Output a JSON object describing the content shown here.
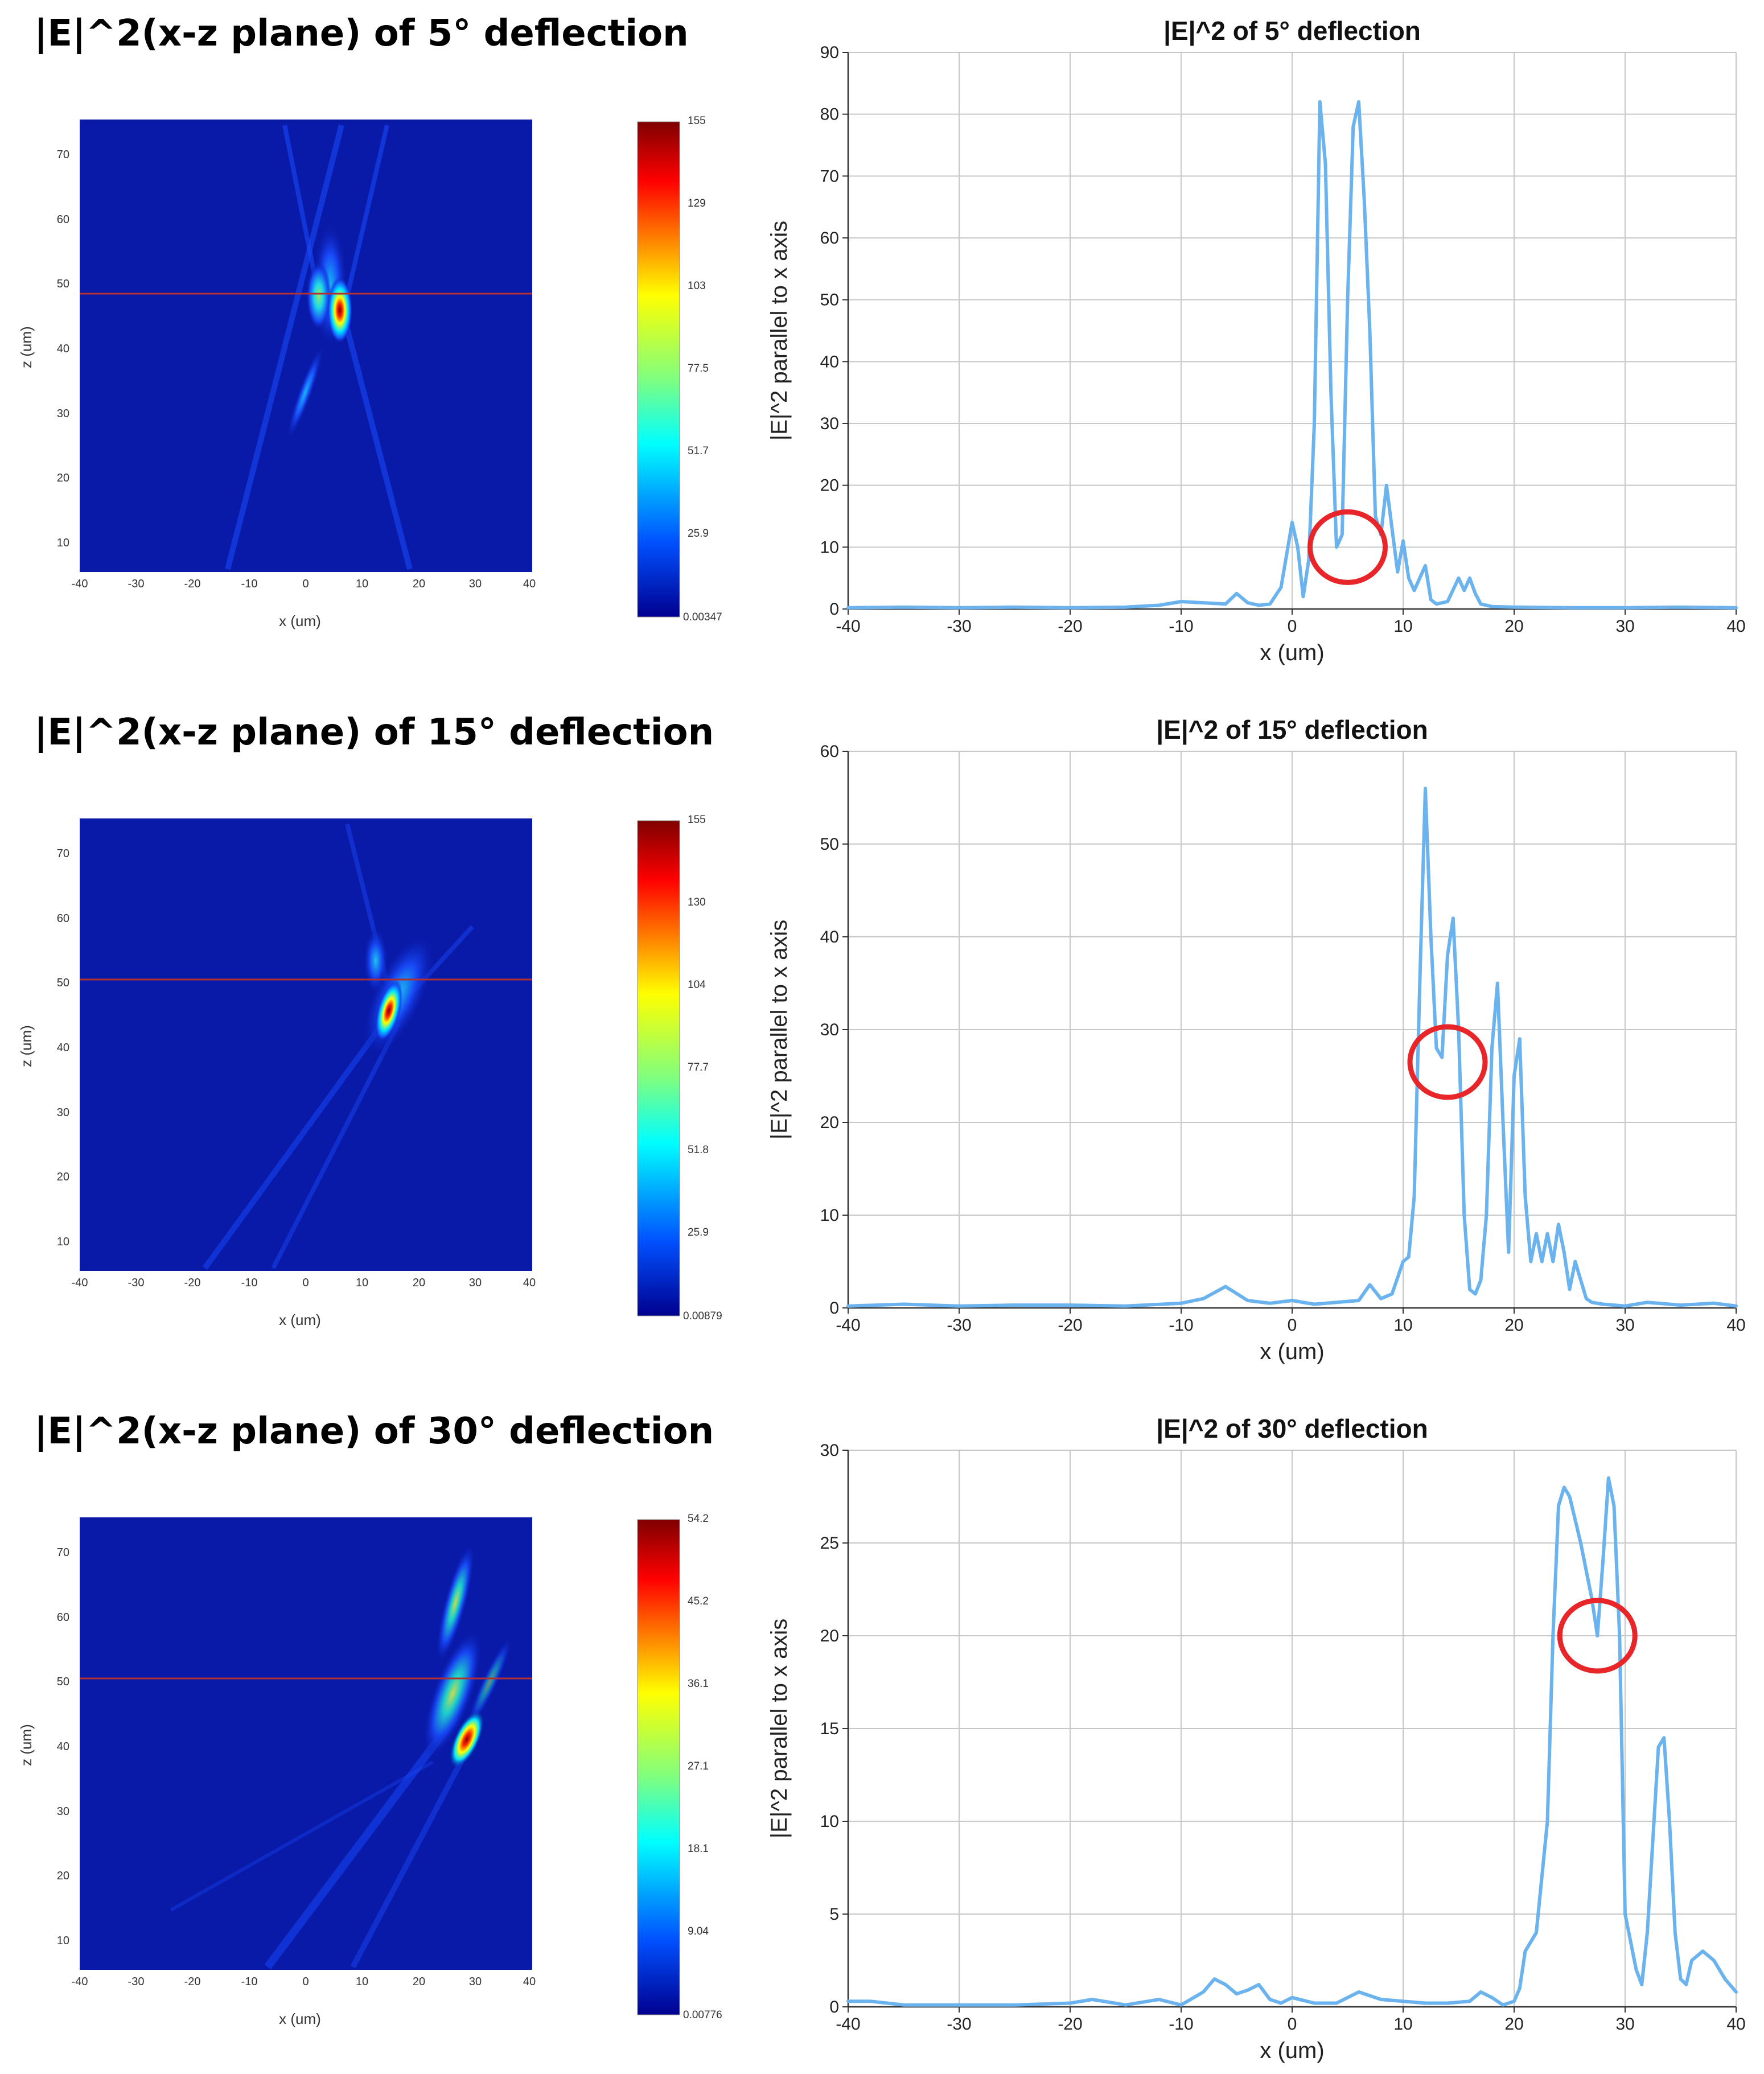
{
  "heatmaps": [
    {
      "title": "|E|^2(x-z plane) of 5° deflection",
      "xlabel": "x (um)",
      "ylabel": "z (um)",
      "xticks": [
        "-40",
        "-30",
        "-20",
        "-10",
        "0",
        "10",
        "20",
        "30",
        "40"
      ],
      "zticks": [
        "70",
        "60",
        "50",
        "40",
        "30",
        "20",
        "10"
      ],
      "colorbar_ticks": [
        "155",
        "129",
        "103",
        "77.5",
        "51.7",
        "25.9",
        "0.00347"
      ]
    },
    {
      "title": "|E|^2(x-z plane) of 15° deflection",
      "xlabel": "x (um)",
      "ylabel": "z (um)",
      "xticks": [
        "-40",
        "-30",
        "-20",
        "-10",
        "0",
        "10",
        "20",
        "30",
        "40"
      ],
      "zticks": [
        "70",
        "60",
        "50",
        "40",
        "30",
        "20",
        "10"
      ],
      "colorbar_ticks": [
        "155",
        "130",
        "104",
        "77.7",
        "51.8",
        "25.9",
        "0.00879"
      ]
    },
    {
      "title": "|E|^2(x-z plane) of 30° deflection",
      "xlabel": "x (um)",
      "ylabel": "z (um)",
      "xticks": [
        "-40",
        "-30",
        "-20",
        "-10",
        "0",
        "10",
        "20",
        "30",
        "40"
      ],
      "zticks": [
        "70",
        "60",
        "50",
        "40",
        "30",
        "20",
        "10"
      ],
      "colorbar_ticks": [
        "54.2",
        "45.2",
        "36.1",
        "27.1",
        "18.1",
        "9.04",
        "0.00776"
      ]
    }
  ],
  "chart_data": [
    {
      "type": "heatmap",
      "title": "|E|^2(x-z plane) of 5° deflection",
      "xlabel": "x (um)",
      "ylabel": "z (um)",
      "xlim": [
        -40,
        40
      ],
      "zlim": [
        5,
        75
      ],
      "colorbar_range": [
        0.00347,
        155
      ],
      "hotspots": [
        {
          "x": 6.5,
          "z": 46,
          "value": 155
        },
        {
          "x": 3,
          "z": 47,
          "value": 90
        }
      ],
      "marker_line_z": 48
    },
    {
      "type": "line",
      "title": "|E|^2 of 5° deflection",
      "xlabel": "x (um)",
      "ylabel": "|E|^2 parallel to x axis",
      "xlim": [
        -40,
        40
      ],
      "ylim": [
        0,
        90
      ],
      "xticks": [
        -40,
        -30,
        -20,
        -10,
        0,
        10,
        20,
        30,
        40
      ],
      "yticks": [
        0,
        10,
        20,
        30,
        40,
        50,
        60,
        70,
        80,
        90
      ],
      "grid": true,
      "series": [
        {
          "color": "#6ab3ee",
          "x": [
            -40,
            -35,
            -30,
            -25,
            -20,
            -15,
            -12,
            -10,
            -8,
            -6,
            -5,
            -4,
            -3,
            -2,
            -1,
            0,
            0.5,
            1,
            1.5,
            2,
            2.5,
            3,
            3.5,
            4,
            4.5,
            5,
            5.5,
            6,
            6.5,
            7,
            7.5,
            8,
            8.5,
            9,
            9.5,
            10,
            10.5,
            11,
            12,
            12.5,
            13,
            14,
            15,
            15.5,
            16,
            16.5,
            17,
            18,
            20,
            25,
            30,
            35,
            40
          ],
          "y": [
            0.2,
            0.3,
            0.2,
            0.3,
            0.2,
            0.3,
            0.6,
            1.2,
            1.0,
            0.8,
            2.5,
            1.0,
            0.6,
            0.8,
            3.5,
            14,
            10,
            2,
            8,
            30,
            82,
            72,
            35,
            10,
            12,
            50,
            78,
            82,
            66,
            45,
            15,
            12,
            20,
            13,
            6,
            11,
            5,
            3,
            7,
            1.5,
            0.8,
            1.2,
            5,
            3,
            5,
            2.5,
            0.8,
            0.4,
            0.3,
            0.2,
            0.2,
            0.3,
            0.2
          ]
        }
      ],
      "annotations": [
        {
          "shape": "circle",
          "color": "#e8262a",
          "x": 5,
          "y": 10
        }
      ]
    },
    {
      "type": "heatmap",
      "title": "|E|^2(x-z plane) of 15° deflection",
      "xlabel": "x (um)",
      "ylabel": "z (um)",
      "xlim": [
        -40,
        40
      ],
      "zlim": [
        5,
        75
      ],
      "colorbar_range": [
        0.00879,
        155
      ],
      "hotspots": [
        {
          "x": 15,
          "z": 45,
          "value": 155
        },
        {
          "x": 13,
          "z": 53,
          "value": 70
        }
      ],
      "marker_line_z": 50
    },
    {
      "type": "line",
      "title": "|E|^2 of 15° deflection",
      "xlabel": "x (um)",
      "ylabel": "|E|^2 parallel to x axis",
      "xlim": [
        -40,
        40
      ],
      "ylim": [
        0,
        60
      ],
      "xticks": [
        -40,
        -30,
        -20,
        -10,
        0,
        10,
        20,
        30,
        40
      ],
      "yticks": [
        0,
        10,
        20,
        30,
        40,
        50,
        60
      ],
      "grid": true,
      "series": [
        {
          "color": "#6ab3ee",
          "x": [
            -40,
            -35,
            -30,
            -25,
            -20,
            -15,
            -10,
            -8,
            -6,
            -4,
            -2,
            0,
            2,
            4,
            6,
            7,
            8,
            9,
            10,
            10.5,
            11,
            11.5,
            12,
            12.5,
            13,
            13.5,
            14,
            14.5,
            15,
            15.5,
            16,
            16.5,
            17,
            17.5,
            18,
            18.5,
            19,
            19.5,
            20,
            20.5,
            21,
            21.5,
            22,
            22.5,
            23,
            23.5,
            24,
            24.5,
            25,
            25.5,
            26,
            26.5,
            27,
            28,
            30,
            32,
            35,
            38,
            40
          ],
          "y": [
            0.2,
            0.4,
            0.2,
            0.3,
            0.3,
            0.2,
            0.5,
            1.0,
            2.3,
            0.8,
            0.5,
            0.8,
            0.4,
            0.6,
            0.8,
            2.5,
            1.0,
            1.5,
            5,
            5.5,
            12,
            35,
            56,
            40,
            28,
            27,
            38,
            42,
            30,
            10,
            2,
            1.5,
            3,
            10,
            28,
            35,
            20,
            6,
            25,
            29,
            12,
            5,
            8,
            5,
            8,
            5,
            9,
            6,
            2,
            5,
            3,
            1,
            0.6,
            0.4,
            0.2,
            0.6,
            0.3,
            0.5,
            0.2
          ]
        }
      ],
      "annotations": [
        {
          "shape": "circle",
          "color": "#e8262a",
          "x": 14,
          "y": 26.5
        }
      ]
    },
    {
      "type": "heatmap",
      "title": "|E|^2(x-z plane) of 30° deflection",
      "xlabel": "x (um)",
      "ylabel": "z (um)",
      "xlim": [
        -40,
        40
      ],
      "zlim": [
        5,
        75
      ],
      "colorbar_range": [
        0.00776,
        54.2
      ],
      "hotspots": [
        {
          "x": 28,
          "z": 40,
          "value": 54.2
        },
        {
          "x": 26,
          "z": 52,
          "value": 30
        }
      ],
      "marker_line_z": 50
    },
    {
      "type": "line",
      "title": "|E|^2 of 30° deflection",
      "xlabel": "x (um)",
      "ylabel": "|E|^2 parallel to x axis",
      "xlim": [
        -40,
        40
      ],
      "ylim": [
        0,
        30
      ],
      "xticks": [
        -40,
        -30,
        -20,
        -10,
        0,
        10,
        20,
        30,
        40
      ],
      "yticks": [
        0,
        5,
        10,
        15,
        20,
        25,
        30
      ],
      "grid": true,
      "series": [
        {
          "color": "#6ab3ee",
          "x": [
            -40,
            -38,
            -35,
            -30,
            -25,
            -20,
            -18,
            -15,
            -12,
            -10,
            -8,
            -7,
            -6,
            -5,
            -4,
            -3,
            -2,
            -1,
            0,
            2,
            4,
            6,
            8,
            10,
            12,
            14,
            16,
            17,
            18,
            19,
            20,
            20.5,
            21,
            22,
            23,
            23.5,
            24,
            24.5,
            25,
            26,
            27,
            27.5,
            28,
            28.5,
            29,
            29.5,
            30,
            31,
            31.5,
            32,
            33,
            33.5,
            34,
            34.5,
            35,
            35.5,
            36,
            37,
            38,
            39,
            40
          ],
          "y": [
            0.3,
            0.3,
            0.1,
            0.1,
            0.1,
            0.2,
            0.4,
            0.1,
            0.4,
            0.1,
            0.8,
            1.5,
            1.2,
            0.7,
            0.9,
            1.2,
            0.4,
            0.2,
            0.5,
            0.2,
            0.2,
            0.8,
            0.4,
            0.3,
            0.2,
            0.2,
            0.3,
            0.8,
            0.5,
            0.1,
            0.3,
            1,
            3,
            4,
            10,
            20,
            27,
            28,
            27.5,
            25,
            22,
            20,
            24,
            28.5,
            27,
            20,
            5,
            2,
            1.2,
            4,
            14,
            14.5,
            10,
            4,
            1.5,
            1.2,
            2.5,
            3,
            2.5,
            1.5,
            0.8
          ]
        }
      ],
      "annotations": [
        {
          "shape": "circle",
          "color": "#e8262a",
          "x": 27.5,
          "y": 20
        }
      ]
    }
  ]
}
